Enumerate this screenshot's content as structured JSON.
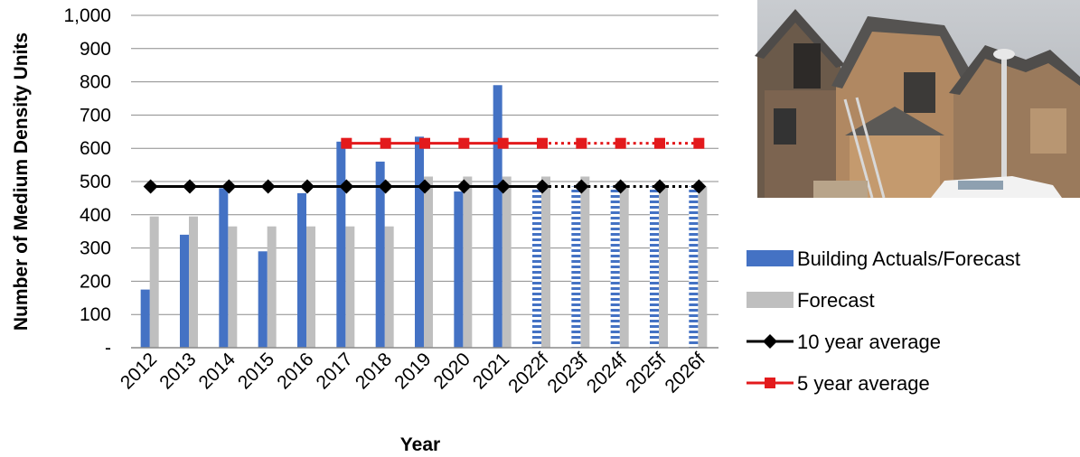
{
  "chart_data": {
    "type": "bar",
    "title": "",
    "xlabel": "Year",
    "ylabel": "Number of Medium Density Units",
    "ylim": [
      0,
      1000
    ],
    "y_ticks": [
      {
        "value": 0,
        "label": "-"
      },
      {
        "value": 100,
        "label": "100"
      },
      {
        "value": 200,
        "label": "200"
      },
      {
        "value": 300,
        "label": "300"
      },
      {
        "value": 400,
        "label": "400"
      },
      {
        "value": 500,
        "label": "500"
      },
      {
        "value": 600,
        "label": "600"
      },
      {
        "value": 700,
        "label": "700"
      },
      {
        "value": 800,
        "label": "800"
      },
      {
        "value": 900,
        "label": "900"
      },
      {
        "value": 1000,
        "label": "1,000"
      }
    ],
    "grid": true,
    "legend_position": "right",
    "categories": [
      "2012",
      "2013",
      "2014",
      "2015",
      "2016",
      "2017",
      "2018",
      "2019",
      "2020",
      "2021",
      "2022f",
      "2023f",
      "2024f",
      "2025f",
      "2026f"
    ],
    "series": [
      {
        "name": "Building Actuals/Forecast",
        "kind": "bar",
        "color": "#4472C4",
        "values": [
          175,
          340,
          480,
          290,
          465,
          620,
          560,
          635,
          470,
          790,
          485,
          485,
          485,
          485,
          485
        ],
        "hatched_from_index": 10
      },
      {
        "name": "Forecast",
        "kind": "bar",
        "color": "#BFBFBF",
        "values": [
          395,
          395,
          365,
          365,
          365,
          365,
          365,
          515,
          515,
          515,
          515,
          515,
          485,
          485,
          485
        ]
      },
      {
        "name": "10 year average",
        "kind": "line",
        "color": "#000000",
        "marker": "diamond",
        "values": [
          485,
          485,
          485,
          485,
          485,
          485,
          485,
          485,
          485,
          485,
          485,
          485,
          485,
          485,
          485
        ],
        "dashed_from_index": 10
      },
      {
        "name": "5 year average",
        "kind": "line",
        "color": "#E31A1C",
        "marker": "square",
        "values": [
          null,
          null,
          null,
          null,
          null,
          615,
          615,
          615,
          615,
          615,
          615,
          615,
          615,
          615,
          615
        ],
        "dashed_from_index": 10
      }
    ]
  },
  "photo": {
    "description_icon": "houses-photo"
  }
}
